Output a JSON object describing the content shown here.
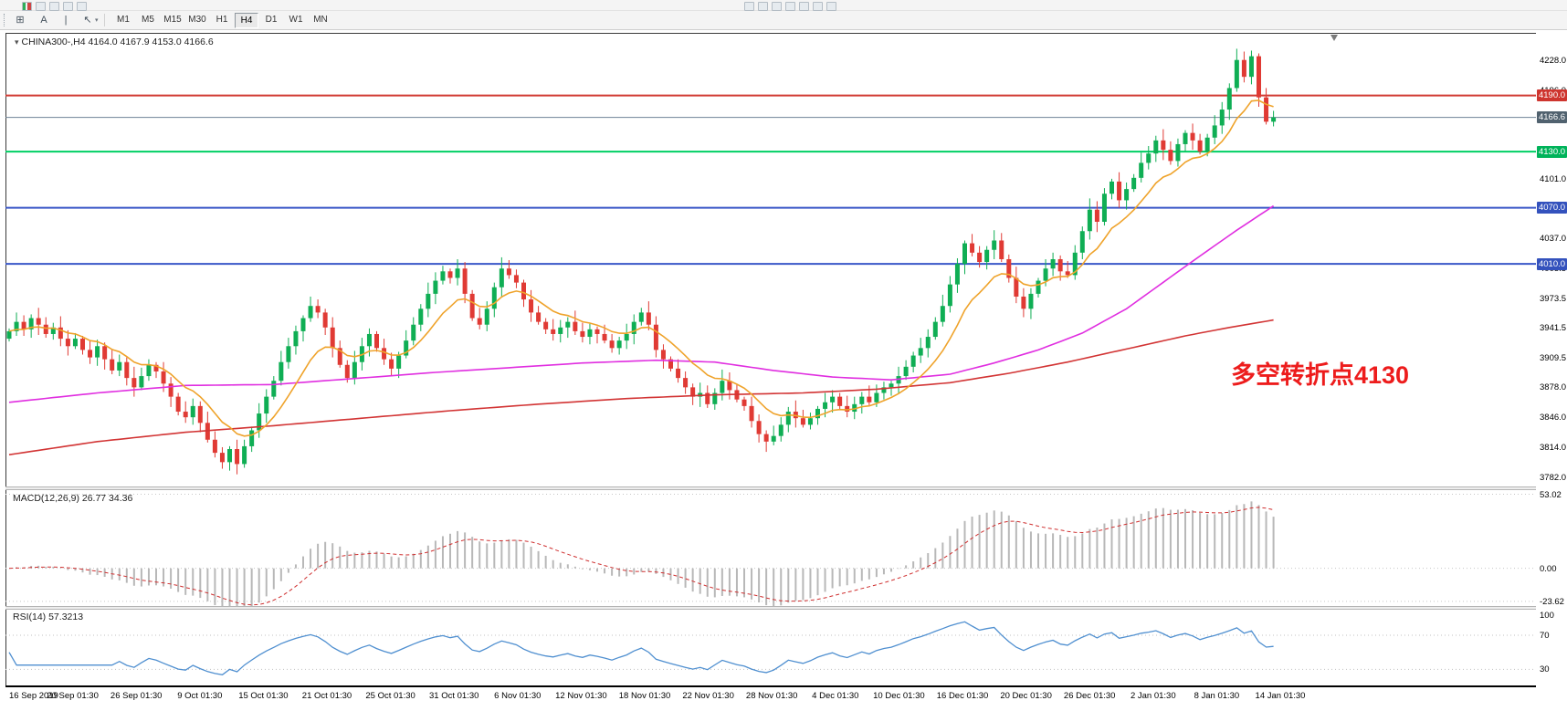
{
  "toolbar_top": {
    "left_icons": [
      {
        "name": "charts-palette-icon"
      },
      {
        "name": "tick-chart-icon"
      },
      {
        "name": "new-chart-icon"
      },
      {
        "name": "profiles-icon"
      },
      {
        "name": "indicators-list-icon"
      }
    ],
    "center_icons": [
      {
        "name": "new-order-icon"
      },
      {
        "name": "chart-window-icon"
      },
      {
        "name": "auto-trading-icon"
      },
      {
        "name": "cursor-tool-icon"
      },
      {
        "name": "crosshair-tool-icon"
      },
      {
        "name": "zoom-in-icon"
      },
      {
        "name": "zoom-out-icon"
      }
    ]
  },
  "toolbar": {
    "tools": [
      {
        "name": "windows-grid-tool",
        "glyph": "⊞"
      },
      {
        "name": "text-tool",
        "glyph": "A"
      },
      {
        "name": "vertical-line-tool",
        "glyph": "|"
      },
      {
        "name": "arrows-tool",
        "glyph": "↖"
      }
    ],
    "dropdown_caret": "▾",
    "timeframes": [
      "M1",
      "M5",
      "M15",
      "M30",
      "H1",
      "H4",
      "D1",
      "W1",
      "MN"
    ],
    "active_timeframe": "H4"
  },
  "chart": {
    "title_caret": "▾",
    "title_text": "CHINA300-,H4 4164.0 4167.9 4153.0 4166.6",
    "annotation": "多空转折点4130",
    "price_axis_labels": [
      "4228.0",
      "4196.0",
      "4164.5",
      "4132.5",
      "4101.0",
      "4069.0",
      "4037.0",
      "4005.5",
      "3973.5",
      "3941.5",
      "3909.5",
      "3878.0",
      "3846.0",
      "3814.0",
      "3782.0"
    ],
    "time_axis_labels": [
      "16 Sep 2019",
      "20 Sep 01:30",
      "26 Sep 01:30",
      "9 Oct 01:30",
      "15 Oct 01:30",
      "21 Oct 01:30",
      "25 Oct 01:30",
      "31 Oct 01:30",
      "6 Nov 01:30",
      "12 Nov 01:30",
      "18 Nov 01:30",
      "22 Nov 01:30",
      "28 Nov 01:30",
      "4 Dec 01:30",
      "10 Dec 01:30",
      "16 Dec 01:30",
      "20 Dec 01:30",
      "26 Dec 01:30",
      "2 Jan 01:30",
      "8 Jan 01:30",
      "14 Jan 01:30"
    ],
    "badges": [
      {
        "label": "4190.0",
        "price": 4190,
        "color": "#ce352f"
      },
      {
        "label": "4166.6",
        "price": 4166.6,
        "color": "#51626f"
      },
      {
        "label": "4130.0",
        "price": 4130,
        "color": "#00b35a"
      },
      {
        "label": "4070.0",
        "price": 4070,
        "color": "#3452bd"
      },
      {
        "label": "4010.0",
        "price": 4010,
        "color": "#3452bd"
      }
    ]
  },
  "indicators": {
    "macd": {
      "label": "MACD(12,26,9) 26.77 34.36",
      "params": [
        12,
        26,
        9
      ],
      "axis": [
        {
          "label": "53.02",
          "value": 53.02
        },
        {
          "label": "0.00",
          "value": 0
        },
        {
          "label": "-23.62",
          "value": -23.62
        }
      ],
      "histogram_color": "#b8b8b8",
      "signal_color": "#cf3030"
    },
    "rsi": {
      "label": "RSI(14) 57.3213",
      "period": 14,
      "axis": [
        {
          "label": "100",
          "value": 100
        },
        {
          "label": "70",
          "value": 70
        },
        {
          "label": "30",
          "value": 30
        }
      ],
      "levels": [
        70,
        30
      ],
      "line_color": "#4f8fd0"
    }
  },
  "chart_data": {
    "type": "candlestick",
    "symbol": "CHINA300-",
    "timeframe": "H4",
    "current": {
      "open": 4164.0,
      "high": 4167.9,
      "low": 4153.0,
      "close": 4166.6
    },
    "price_range": [
      3772,
      4257
    ],
    "macd_range": [
      -27,
      56
    ],
    "rsi_range": [
      10,
      100
    ],
    "candle_up_color": "#0fae54",
    "candle_down_color": "#e03a34",
    "closes": [
      3938,
      3948,
      3940,
      3952,
      3945,
      3935,
      3942,
      3930,
      3922,
      3930,
      3918,
      3910,
      3922,
      3908,
      3896,
      3905,
      3888,
      3878,
      3890,
      3902,
      3895,
      3882,
      3868,
      3852,
      3846,
      3858,
      3840,
      3822,
      3808,
      3798,
      3812,
      3796,
      3815,
      3832,
      3850,
      3868,
      3885,
      3905,
      3922,
      3938,
      3952,
      3965,
      3958,
      3942,
      3920,
      3902,
      3888,
      3905,
      3922,
      3935,
      3920,
      3908,
      3898,
      3912,
      3928,
      3945,
      3962,
      3978,
      3992,
      4002,
      3995,
      4005,
      3978,
      3952,
      3945,
      3962,
      3985,
      4005,
      3998,
      3990,
      3972,
      3958,
      3948,
      3940,
      3935,
      3942,
      3948,
      3938,
      3932,
      3940,
      3935,
      3928,
      3920,
      3928,
      3935,
      3948,
      3958,
      3945,
      3918,
      3908,
      3898,
      3888,
      3878,
      3868,
      3872,
      3860,
      3872,
      3885,
      3875,
      3865,
      3858,
      3842,
      3828,
      3820,
      3826,
      3838,
      3852,
      3845,
      3838,
      3845,
      3855,
      3862,
      3868,
      3858,
      3852,
      3860,
      3868,
      3862,
      3872,
      3878,
      3882,
      3890,
      3900,
      3912,
      3920,
      3932,
      3948,
      3965,
      3988,
      4010,
      4032,
      4022,
      4012,
      4025,
      4035,
      4015,
      3995,
      3975,
      3962,
      3978,
      3992,
      4005,
      4015,
      4002,
      3998,
      4022,
      4045,
      4068,
      4055,
      4085,
      4098,
      4078,
      4090,
      4102,
      4118,
      4128,
      4142,
      4132,
      4120,
      4138,
      4150,
      4142,
      4130,
      4145,
      4158,
      4175,
      4198,
      4228,
      4210,
      4232,
      4188,
      4162,
      4166.6
    ],
    "hlines": [
      {
        "price": 4190,
        "color": "#d13a33"
      },
      {
        "price": 4130,
        "color": "#00cf63"
      },
      {
        "price": 4070,
        "color": "#3a57c8"
      },
      {
        "price": 4010,
        "color": "#3a57c8"
      }
    ],
    "current_price": {
      "value": 4166.6,
      "line_color": "#6e8396"
    },
    "ma_fast": {
      "color": "#efa32b",
      "period": 10
    },
    "ma_mid": {
      "color": "#e02ee0",
      "points": [
        [
          0,
          3862
        ],
        [
          12,
          3872
        ],
        [
          24,
          3880
        ],
        [
          36,
          3881
        ],
        [
          48,
          3888
        ],
        [
          58,
          3894
        ],
        [
          68,
          3899
        ],
        [
          78,
          3904
        ],
        [
          88,
          3907
        ],
        [
          96,
          3905
        ],
        [
          104,
          3896
        ],
        [
          112,
          3889
        ],
        [
          120,
          3886
        ],
        [
          128,
          3892
        ],
        [
          134,
          3904
        ],
        [
          140,
          3918
        ],
        [
          146,
          3936
        ],
        [
          152,
          3962
        ],
        [
          158,
          3996
        ],
        [
          163,
          4024
        ],
        [
          167,
          4046
        ],
        [
          172,
          4072
        ]
      ]
    },
    "ma_slow": {
      "color": "#d23434",
      "points": [
        [
          0,
          3806
        ],
        [
          12,
          3820
        ],
        [
          24,
          3830
        ],
        [
          36,
          3837
        ],
        [
          48,
          3845
        ],
        [
          60,
          3853
        ],
        [
          72,
          3860
        ],
        [
          84,
          3866
        ],
        [
          96,
          3870
        ],
        [
          108,
          3872
        ],
        [
          118,
          3876
        ],
        [
          128,
          3883
        ],
        [
          136,
          3893
        ],
        [
          144,
          3905
        ],
        [
          152,
          3919
        ],
        [
          160,
          3933
        ],
        [
          166,
          3942
        ],
        [
          172,
          3950
        ]
      ]
    }
  }
}
